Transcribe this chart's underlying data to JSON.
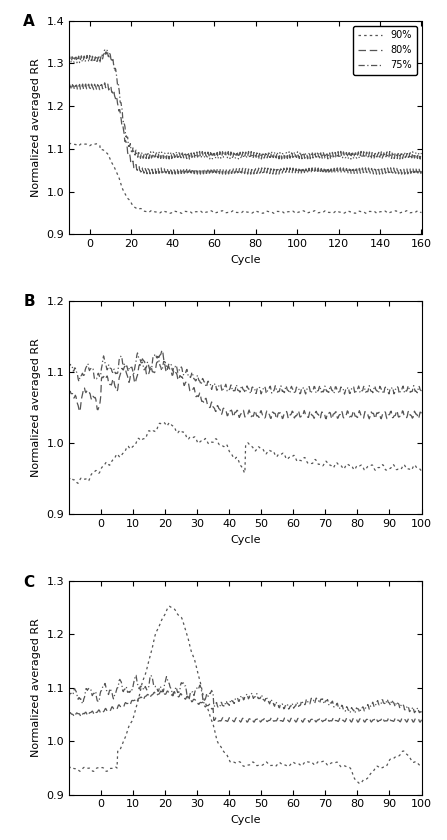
{
  "panel_labels": [
    "A",
    "B",
    "C"
  ],
  "ylabel": "Normalized averaged RR",
  "xlabel": "Cycle",
  "legend_labels": [
    "90%",
    "80%",
    "75%"
  ],
  "panelA": {
    "xlim": [
      -10,
      160
    ],
    "ylim": [
      0.9,
      1.4
    ],
    "xticks": [
      0,
      20,
      40,
      60,
      80,
      100,
      120,
      140,
      160
    ],
    "yticks": [
      0.9,
      1.0,
      1.1,
      1.2,
      1.3,
      1.4
    ]
  },
  "panelB": {
    "xlim": [
      -10,
      100
    ],
    "ylim": [
      0.9,
      1.2
    ],
    "xticks": [
      0,
      10,
      20,
      30,
      40,
      50,
      60,
      70,
      80,
      90,
      100
    ],
    "yticks": [
      0.9,
      1.0,
      1.1,
      1.2
    ]
  },
  "panelC": {
    "xlim": [
      -10,
      100
    ],
    "ylim": [
      0.9,
      1.3
    ],
    "xticks": [
      0,
      10,
      20,
      30,
      40,
      50,
      60,
      70,
      80,
      90,
      100
    ],
    "yticks": [
      0.9,
      1.0,
      1.1,
      1.2,
      1.3
    ]
  },
  "line_color": "#555555",
  "line_width": 0.9,
  "background_color": "#ffffff"
}
